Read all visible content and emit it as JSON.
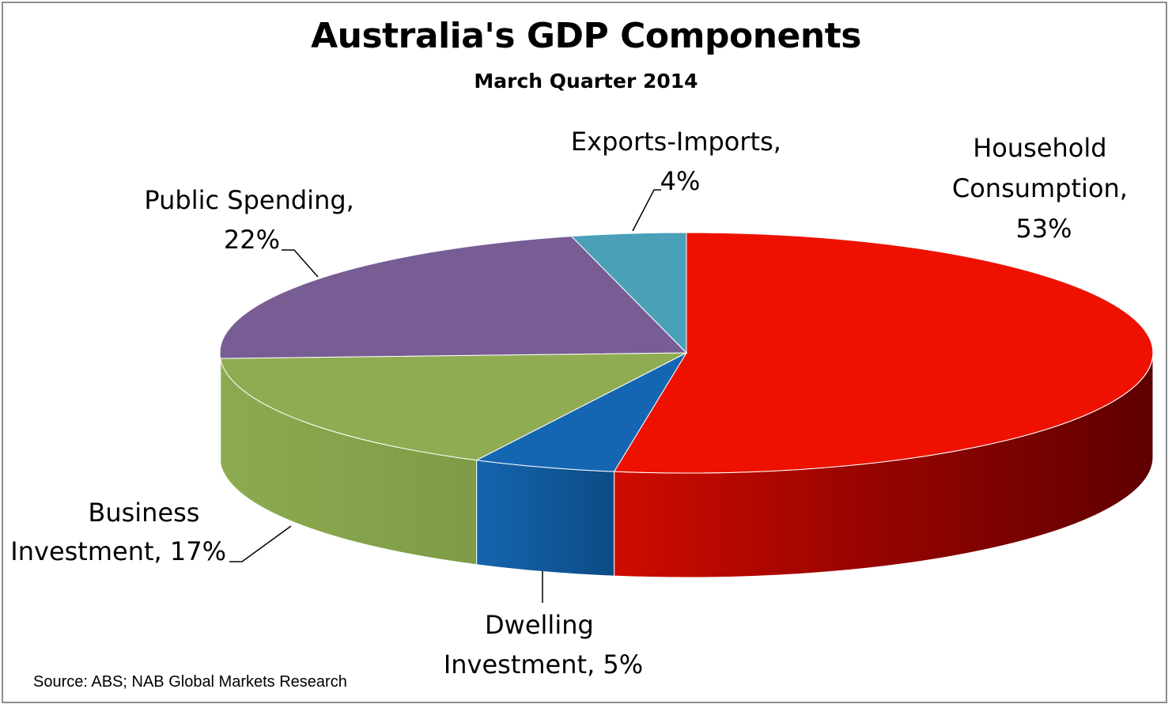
{
  "chart_data": {
    "type": "pie",
    "style": "3d",
    "title": "Australia's GDP Components",
    "subtitle": "March Quarter 2014",
    "source": "Source: ABS; NAB Global Markets Research",
    "slices": [
      {
        "name": "Household Consumption",
        "value": 53,
        "label_lines": [
          "Household",
          "Consumption,",
          "53%"
        ],
        "color": "#ee1100",
        "side_color": "#8a0000"
      },
      {
        "name": "Dwelling Investment",
        "value": 5,
        "label_lines": [
          "Dwelling",
          "Investment, 5%"
        ],
        "color": "#1466b3",
        "side_color": "#0e4f8e"
      },
      {
        "name": "Business Investment",
        "value": 17,
        "label_lines": [
          "Business",
          "Investment, 17%"
        ],
        "color": "#8fac53",
        "side_color": "#7f9b48"
      },
      {
        "name": "Public Spending",
        "value": 22,
        "label_lines": [
          "Public Spending,",
          "22%"
        ],
        "color": "#775d94",
        "side_color": "#5f4a78"
      },
      {
        "name": "Exports-Imports",
        "value": 4,
        "label_lines": [
          "Exports-Imports,",
          "4%"
        ],
        "color": "#4a9fb9",
        "side_color": "#3b8196"
      }
    ]
  }
}
